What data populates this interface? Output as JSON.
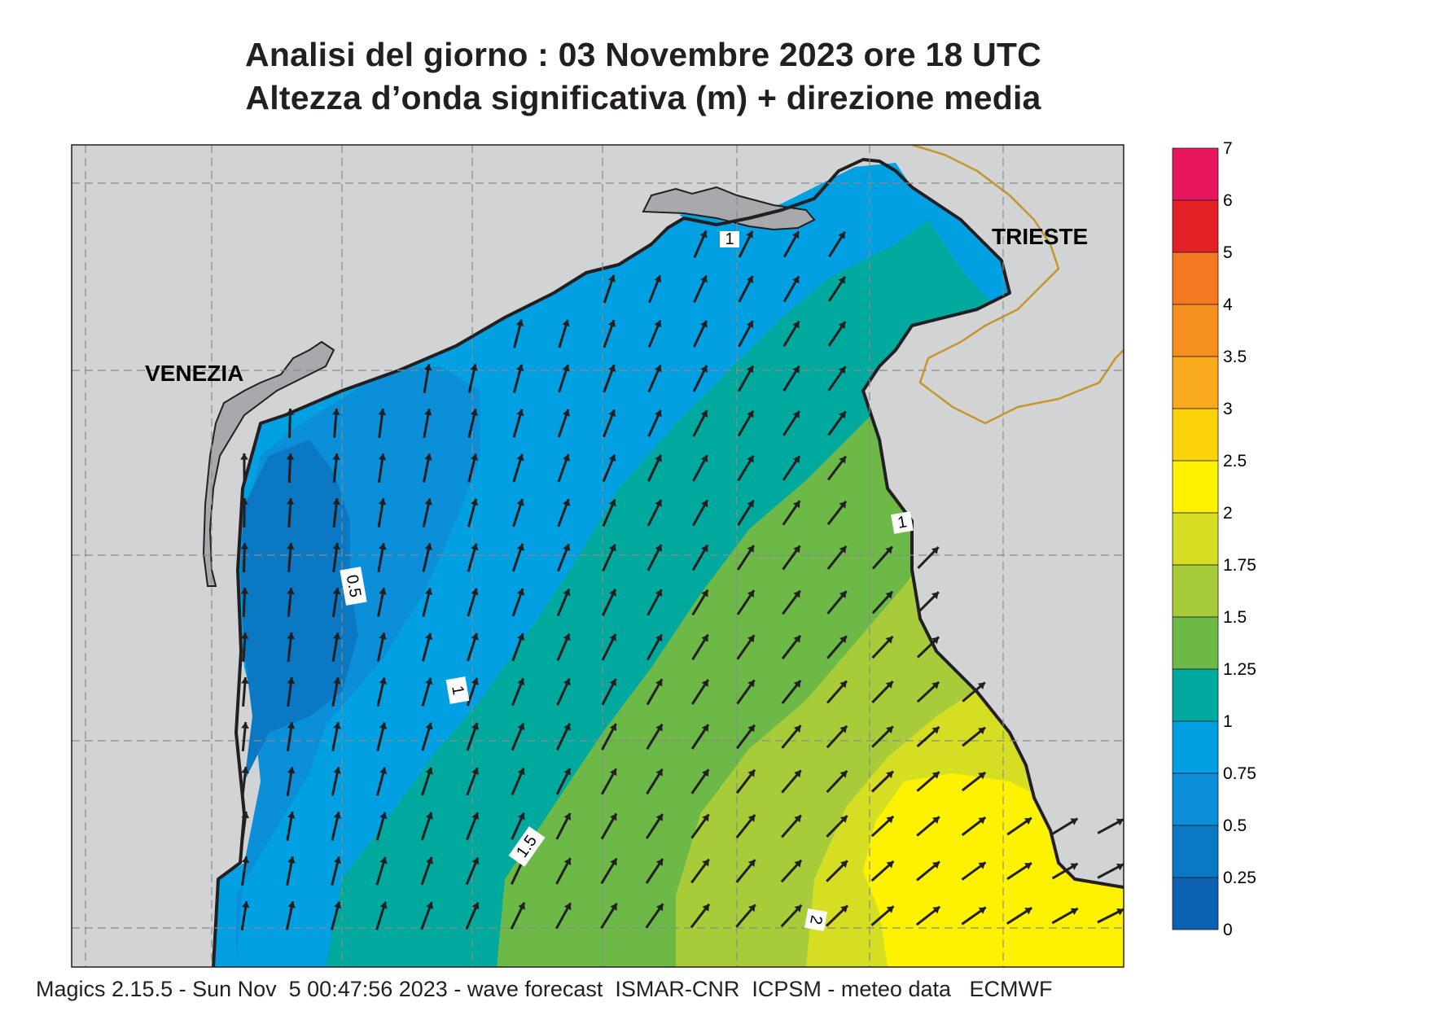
{
  "title": {
    "line1": "Analisi del giorno :  03 Novembre  2023   ore 18 UTC",
    "line2": "Altezza d’onda significativa (m) + direzione media"
  },
  "places": [
    {
      "name": "VENEZIA"
    },
    {
      "name": "TRIESTE"
    }
  ],
  "contour_labels": [
    "0.5",
    "1",
    "1.5",
    "2",
    "1",
    "1"
  ],
  "legend": {
    "labels": [
      "7",
      "6",
      "5",
      "4",
      "3.5",
      "3",
      "2.5",
      "2",
      "1.75",
      "1.5",
      "1.25",
      "1",
      "0.75",
      "0.5",
      "0.25",
      "0"
    ],
    "colors": [
      "#e8155f",
      "#e22026",
      "#f47920",
      "#f58f1f",
      "#f8aa1c",
      "#fcd20a",
      "#fff200",
      "#d6de23",
      "#a8cc39",
      "#6cb947",
      "#00a99d",
      "#00a0e3",
      "#0b8fd8",
      "#0b78c4",
      "#0b60b0"
    ]
  },
  "land_color": "#d1d3d4",
  "footer": "Magics 2.15.5 - Sun Nov  5 00:47:56 2023 - wave forecast  ISMAR-CNR  ICPSM - meteo data   ECMWF"
}
